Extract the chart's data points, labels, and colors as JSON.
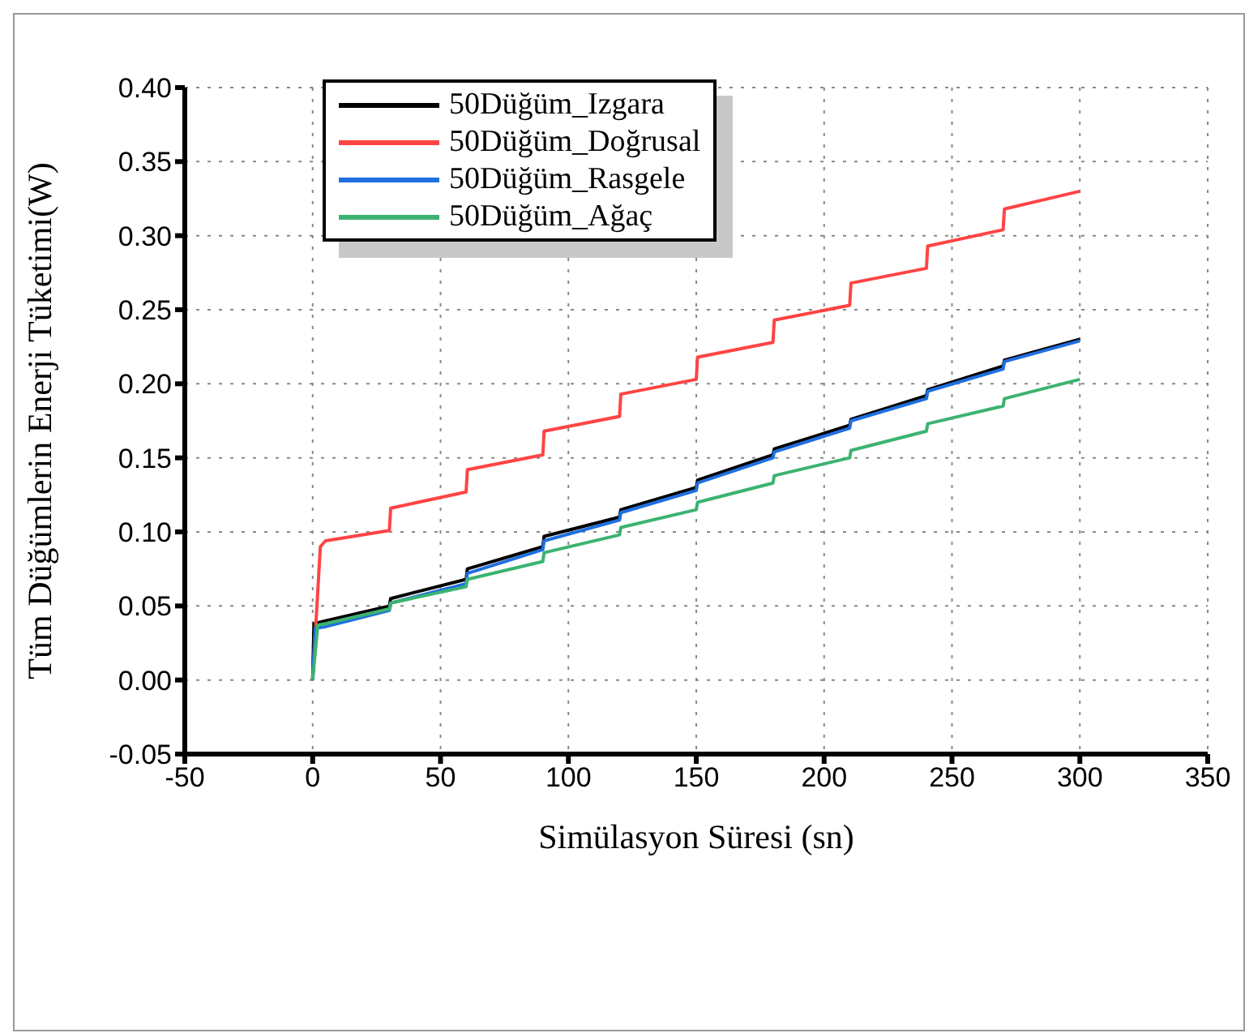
{
  "chart_data": {
    "type": "line",
    "xlabel": "Simülasyon Süresi (sn)",
    "ylabel": "Tüm Düğümlerin Enerji Tüketimi(W)",
    "xlim": [
      -50,
      350
    ],
    "xticks": [
      -50,
      0,
      50,
      100,
      150,
      200,
      250,
      300,
      350
    ],
    "ylim": [
      -0.05,
      0.4
    ],
    "yticks": [
      -0.05,
      {
        "value": 0,
        "label": "0.00"
      },
      0.05,
      {
        "value": 0.1,
        "label": "0.10"
      },
      0.15,
      {
        "value": 0.2,
        "label": "0.20"
      },
      0.25,
      {
        "value": 0.3,
        "label": "0.30"
      },
      0.35,
      {
        "value": 0.4,
        "label": "0.40"
      }
    ],
    "grid": true,
    "legend": "top left",
    "marker": "none",
    "line_style": "solid",
    "series": [
      {
        "name": "50Düğüm_Izgara",
        "color": "#000000",
        "x": [
          0,
          0.5,
          5,
          30,
          30.5,
          60,
          60.5,
          90,
          90.5,
          120,
          120.5,
          150,
          150.5,
          180,
          180.5,
          210,
          210.5,
          240,
          240.5,
          270,
          270.5,
          300
        ],
        "values": [
          0,
          0.038,
          0.04,
          0.05,
          0.055,
          0.068,
          0.075,
          0.09,
          0.097,
          0.11,
          0.115,
          0.13,
          0.135,
          0.152,
          0.156,
          0.172,
          0.176,
          0.192,
          0.196,
          0.212,
          0.216,
          0.23
        ]
      },
      {
        "name": "50Düğüm_Doğrusal",
        "color": "#ff4444",
        "x": [
          0,
          3,
          5,
          30,
          30.5,
          60,
          60.5,
          90,
          90.5,
          120,
          120.5,
          150,
          150.5,
          180,
          180.5,
          210,
          210.5,
          240,
          240.5,
          270,
          270.5,
          300
        ],
        "values": [
          0,
          0.09,
          0.094,
          0.101,
          0.116,
          0.127,
          0.142,
          0.152,
          0.168,
          0.178,
          0.193,
          0.203,
          0.218,
          0.228,
          0.243,
          0.253,
          0.268,
          0.278,
          0.293,
          0.304,
          0.318,
          0.33
        ]
      },
      {
        "name": "50Düğüm_Rasgele",
        "color": "#1f6fe0",
        "x": [
          0,
          1,
          5,
          30,
          30.5,
          60,
          60.5,
          90,
          90.5,
          120,
          120.5,
          150,
          150.5,
          180,
          180.5,
          210,
          210.5,
          240,
          240.5,
          270,
          270.5,
          300
        ],
        "values": [
          0,
          0.035,
          0.036,
          0.047,
          0.052,
          0.065,
          0.072,
          0.088,
          0.094,
          0.108,
          0.113,
          0.128,
          0.133,
          0.15,
          0.154,
          0.17,
          0.175,
          0.19,
          0.195,
          0.21,
          0.215,
          0.229
        ]
      },
      {
        "name": "50Düğüm_Ağaç",
        "color": "#3cb371",
        "x": [
          0,
          2,
          5,
          30,
          30.5,
          60,
          60.5,
          90,
          90.5,
          120,
          120.5,
          150,
          150.5,
          180,
          180.5,
          210,
          210.5,
          240,
          240.5,
          270,
          270.5,
          300
        ],
        "values": [
          0,
          0.037,
          0.038,
          0.048,
          0.052,
          0.063,
          0.068,
          0.08,
          0.086,
          0.098,
          0.103,
          0.115,
          0.12,
          0.133,
          0.138,
          0.15,
          0.155,
          0.168,
          0.173,
          0.185,
          0.19,
          0.203
        ]
      }
    ]
  }
}
